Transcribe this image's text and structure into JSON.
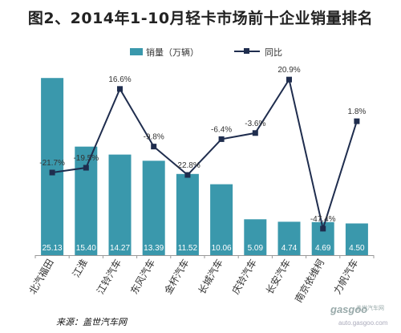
{
  "chart_data": {
    "type": "bar+line",
    "title": "图2、2014年1-10月轻卡市场前十企业销量排名",
    "categories": [
      "北汽福田",
      "江淮",
      "江铃汽车",
      "东风汽车",
      "金杯汽车",
      "长城汽车",
      "庆铃汽车",
      "长安汽车",
      "南京依维柯",
      "力帆汽车"
    ],
    "series": [
      {
        "name": "销量（万辆）",
        "type": "bar",
        "color": "#3a98ac",
        "values": [
          25.13,
          15.4,
          14.27,
          13.39,
          11.52,
          10.06,
          5.09,
          4.74,
          4.69,
          4.5
        ],
        "labels": [
          "25.13",
          "15.40",
          "14.27",
          "13.39",
          "11.52",
          "10.06",
          "5.09",
          "4.74",
          "4.69",
          "4.50"
        ]
      },
      {
        "name": "同比",
        "type": "line",
        "color": "#1f2d4e",
        "values": [
          -21.7,
          -19.5,
          16.6,
          -9.8,
          -22.8,
          -6.4,
          -3.6,
          20.9,
          -47.4,
          1.8
        ],
        "labels": [
          "-21.7%",
          "-19.5%",
          "16.6%",
          "-9.8%",
          "-22.8%",
          "-6.4%",
          "-3.6%",
          "20.9%",
          "-47.4%",
          "1.8%"
        ]
      }
    ],
    "bar_axis_range": [
      0,
      28
    ],
    "line_axis_range": [
      -50,
      25
    ],
    "legend_position": "top",
    "grid": false
  },
  "source": "来源：盖世汽车网",
  "watermark": {
    "logo": "gasgoo",
    "name": "盖世汽车网",
    "url": "auto.gasgoo.com"
  }
}
